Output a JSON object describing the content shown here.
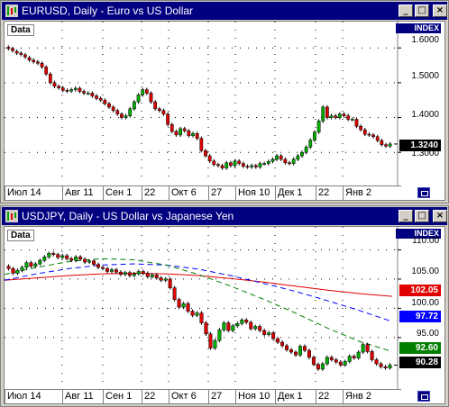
{
  "windows": [
    {
      "title": "EURUSD, Daily - Euro vs US Dollar",
      "data_button": "Data",
      "index_label": "INDEX",
      "price_tags": [
        {
          "value": "1.3240",
          "color": "#000000"
        }
      ],
      "y_labels": [
        "1.6000",
        "1.5000",
        "1.4000",
        "1.3000"
      ],
      "x_labels": [
        "Июл 14",
        "Авг 11",
        "Сен 1",
        "22",
        "Окт 6",
        "27",
        "Ноя 10",
        "Дек 1",
        "22",
        "Янв 2"
      ]
    },
    {
      "title": "USDJPY, Daily - US Dollar vs Japanese Yen",
      "data_button": "Data",
      "index_label": "INDEX",
      "price_tags": [
        {
          "value": "102.05",
          "color": "#e00000"
        },
        {
          "value": "97.72",
          "color": "#0000ff"
        },
        {
          "value": "92.60",
          "color": "#008000"
        },
        {
          "value": "90.28",
          "color": "#000000"
        }
      ],
      "y_labels": [
        "110.00",
        "105.00",
        "100.00",
        "95.00"
      ],
      "x_labels": [
        "Июл 14",
        "Авг 11",
        "Сен 1",
        "22",
        "Окт 6",
        "27",
        "Ноя 10",
        "Дек 1",
        "22",
        "Янв 2"
      ]
    }
  ],
  "chart_data": [
    {
      "type": "candlestick",
      "title": "EURUSD, Daily - Euro vs US Dollar",
      "ylim": [
        1.21,
        1.66
      ],
      "y_ticks": [
        1.6,
        1.5,
        1.4,
        1.3
      ],
      "last_price": 1.324,
      "close_series": [
        1.598,
        1.592,
        1.585,
        1.581,
        1.574,
        1.565,
        1.56,
        1.556,
        1.545,
        1.525,
        1.5,
        1.49,
        1.485,
        1.478,
        1.476,
        1.48,
        1.484,
        1.475,
        1.47,
        1.47,
        1.462,
        1.455,
        1.45,
        1.44,
        1.43,
        1.42,
        1.41,
        1.4,
        1.405,
        1.425,
        1.445,
        1.465,
        1.48,
        1.47,
        1.445,
        1.425,
        1.42,
        1.41,
        1.38,
        1.36,
        1.35,
        1.368,
        1.362,
        1.348,
        1.354,
        1.34,
        1.305,
        1.29,
        1.275,
        1.265,
        1.262,
        1.255,
        1.27,
        1.262,
        1.275,
        1.268,
        1.26,
        1.258,
        1.262,
        1.258,
        1.268,
        1.268,
        1.274,
        1.28,
        1.29,
        1.28,
        1.27,
        1.268,
        1.28,
        1.29,
        1.3,
        1.315,
        1.335,
        1.358,
        1.39,
        1.43,
        1.4,
        1.405,
        1.4,
        1.41,
        1.405,
        1.395,
        1.395,
        1.375,
        1.365,
        1.352,
        1.35,
        1.345,
        1.334,
        1.322,
        1.318,
        1.324
      ],
      "open_series": [
        1.602,
        1.598,
        1.59,
        1.585,
        1.58,
        1.572,
        1.565,
        1.56,
        1.556,
        1.545,
        1.525,
        1.5,
        1.49,
        1.485,
        1.478,
        1.476,
        1.48,
        1.484,
        1.475,
        1.47,
        1.47,
        1.462,
        1.455,
        1.45,
        1.44,
        1.43,
        1.42,
        1.41,
        1.4,
        1.405,
        1.425,
        1.445,
        1.465,
        1.48,
        1.47,
        1.445,
        1.425,
        1.42,
        1.41,
        1.38,
        1.36,
        1.35,
        1.368,
        1.362,
        1.348,
        1.354,
        1.34,
        1.305,
        1.29,
        1.275,
        1.265,
        1.262,
        1.255,
        1.27,
        1.262,
        1.275,
        1.268,
        1.26,
        1.258,
        1.262,
        1.258,
        1.268,
        1.268,
        1.274,
        1.28,
        1.29,
        1.28,
        1.27,
        1.268,
        1.28,
        1.29,
        1.3,
        1.315,
        1.335,
        1.358,
        1.39,
        1.43,
        1.4,
        1.405,
        1.4,
        1.41,
        1.405,
        1.395,
        1.395,
        1.375,
        1.365,
        1.352,
        1.35,
        1.345,
        1.334,
        1.322,
        1.318
      ]
    },
    {
      "type": "candlestick",
      "title": "USDJPY, Daily - US Dollar vs Japanese Yen",
      "ylim": [
        86.5,
        113.0
      ],
      "y_ticks": [
        110,
        105,
        100,
        95
      ],
      "last_price": 90.28,
      "close_series": [
        106.8,
        106.0,
        106.5,
        107.0,
        107.8,
        107.2,
        107.6,
        108.2,
        108.8,
        109.4,
        109.2,
        108.7,
        109.0,
        108.5,
        108.2,
        108.8,
        108.4,
        107.9,
        108.1,
        107.5,
        107.0,
        106.8,
        106.3,
        106.6,
        106.2,
        105.8,
        106.1,
        105.6,
        105.9,
        106.3,
        106.0,
        105.4,
        105.7,
        105.2,
        104.8,
        105.0,
        103.5,
        101.5,
        100.2,
        100.8,
        99.5,
        98.8,
        99.2,
        97.5,
        95.6,
        93.2,
        94.5,
        96.3,
        97.5,
        96.2,
        97.0,
        97.4,
        98.0,
        97.6,
        96.5,
        96.9,
        96.2,
        95.5,
        95.8,
        94.8,
        94.2,
        93.6,
        92.9,
        92.5,
        92.0,
        93.5,
        92.8,
        91.6,
        90.4,
        89.6,
        90.5,
        91.6,
        91.2,
        90.8,
        90.3,
        90.9,
        91.8,
        91.5,
        92.5,
        93.8,
        92.6,
        91.2,
        90.5,
        90.0,
        89.8,
        90.28
      ],
      "open_series": [
        107.2,
        106.8,
        106.0,
        106.5,
        107.0,
        107.8,
        107.2,
        107.6,
        108.2,
        108.8,
        109.4,
        109.2,
        108.7,
        109.0,
        108.5,
        108.2,
        108.8,
        108.4,
        107.9,
        108.1,
        107.5,
        107.0,
        106.8,
        106.3,
        106.6,
        106.2,
        105.8,
        106.1,
        105.6,
        105.9,
        106.3,
        106.0,
        105.4,
        105.7,
        105.2,
        104.8,
        105.0,
        103.5,
        101.5,
        100.2,
        100.8,
        99.5,
        98.8,
        99.2,
        97.5,
        95.6,
        93.2,
        94.5,
        96.3,
        97.5,
        96.2,
        97.0,
        97.4,
        98.0,
        97.6,
        96.5,
        96.9,
        96.2,
        95.5,
        95.8,
        94.8,
        94.2,
        93.6,
        92.9,
        92.5,
        92.0,
        93.5,
        92.8,
        91.6,
        90.4,
        89.6,
        90.5,
        91.6,
        91.2,
        90.8,
        90.3,
        90.9,
        91.8,
        91.5,
        92.5,
        93.8,
        92.6,
        91.2,
        90.5,
        90.0,
        89.8
      ],
      "moving_averages": [
        {
          "color": "#e00000",
          "style": "solid",
          "values": [
            104.8,
            105.2,
            105.6,
            105.9,
            106.0,
            105.9,
            105.6,
            105.1,
            104.5,
            103.8,
            103.1,
            102.5,
            102.05
          ]
        },
        {
          "color": "#0000ff",
          "style": "dashed",
          "values": [
            104.8,
            105.9,
            106.8,
            107.4,
            107.6,
            107.4,
            106.7,
            105.6,
            104.3,
            102.9,
            101.3,
            99.6,
            97.72
          ]
        },
        {
          "color": "#008000",
          "style": "dashed",
          "values": [
            105.8,
            107.0,
            108.0,
            108.5,
            108.3,
            107.4,
            105.8,
            103.8,
            101.6,
            99.2,
            96.6,
            94.3,
            92.6
          ]
        }
      ]
    }
  ]
}
